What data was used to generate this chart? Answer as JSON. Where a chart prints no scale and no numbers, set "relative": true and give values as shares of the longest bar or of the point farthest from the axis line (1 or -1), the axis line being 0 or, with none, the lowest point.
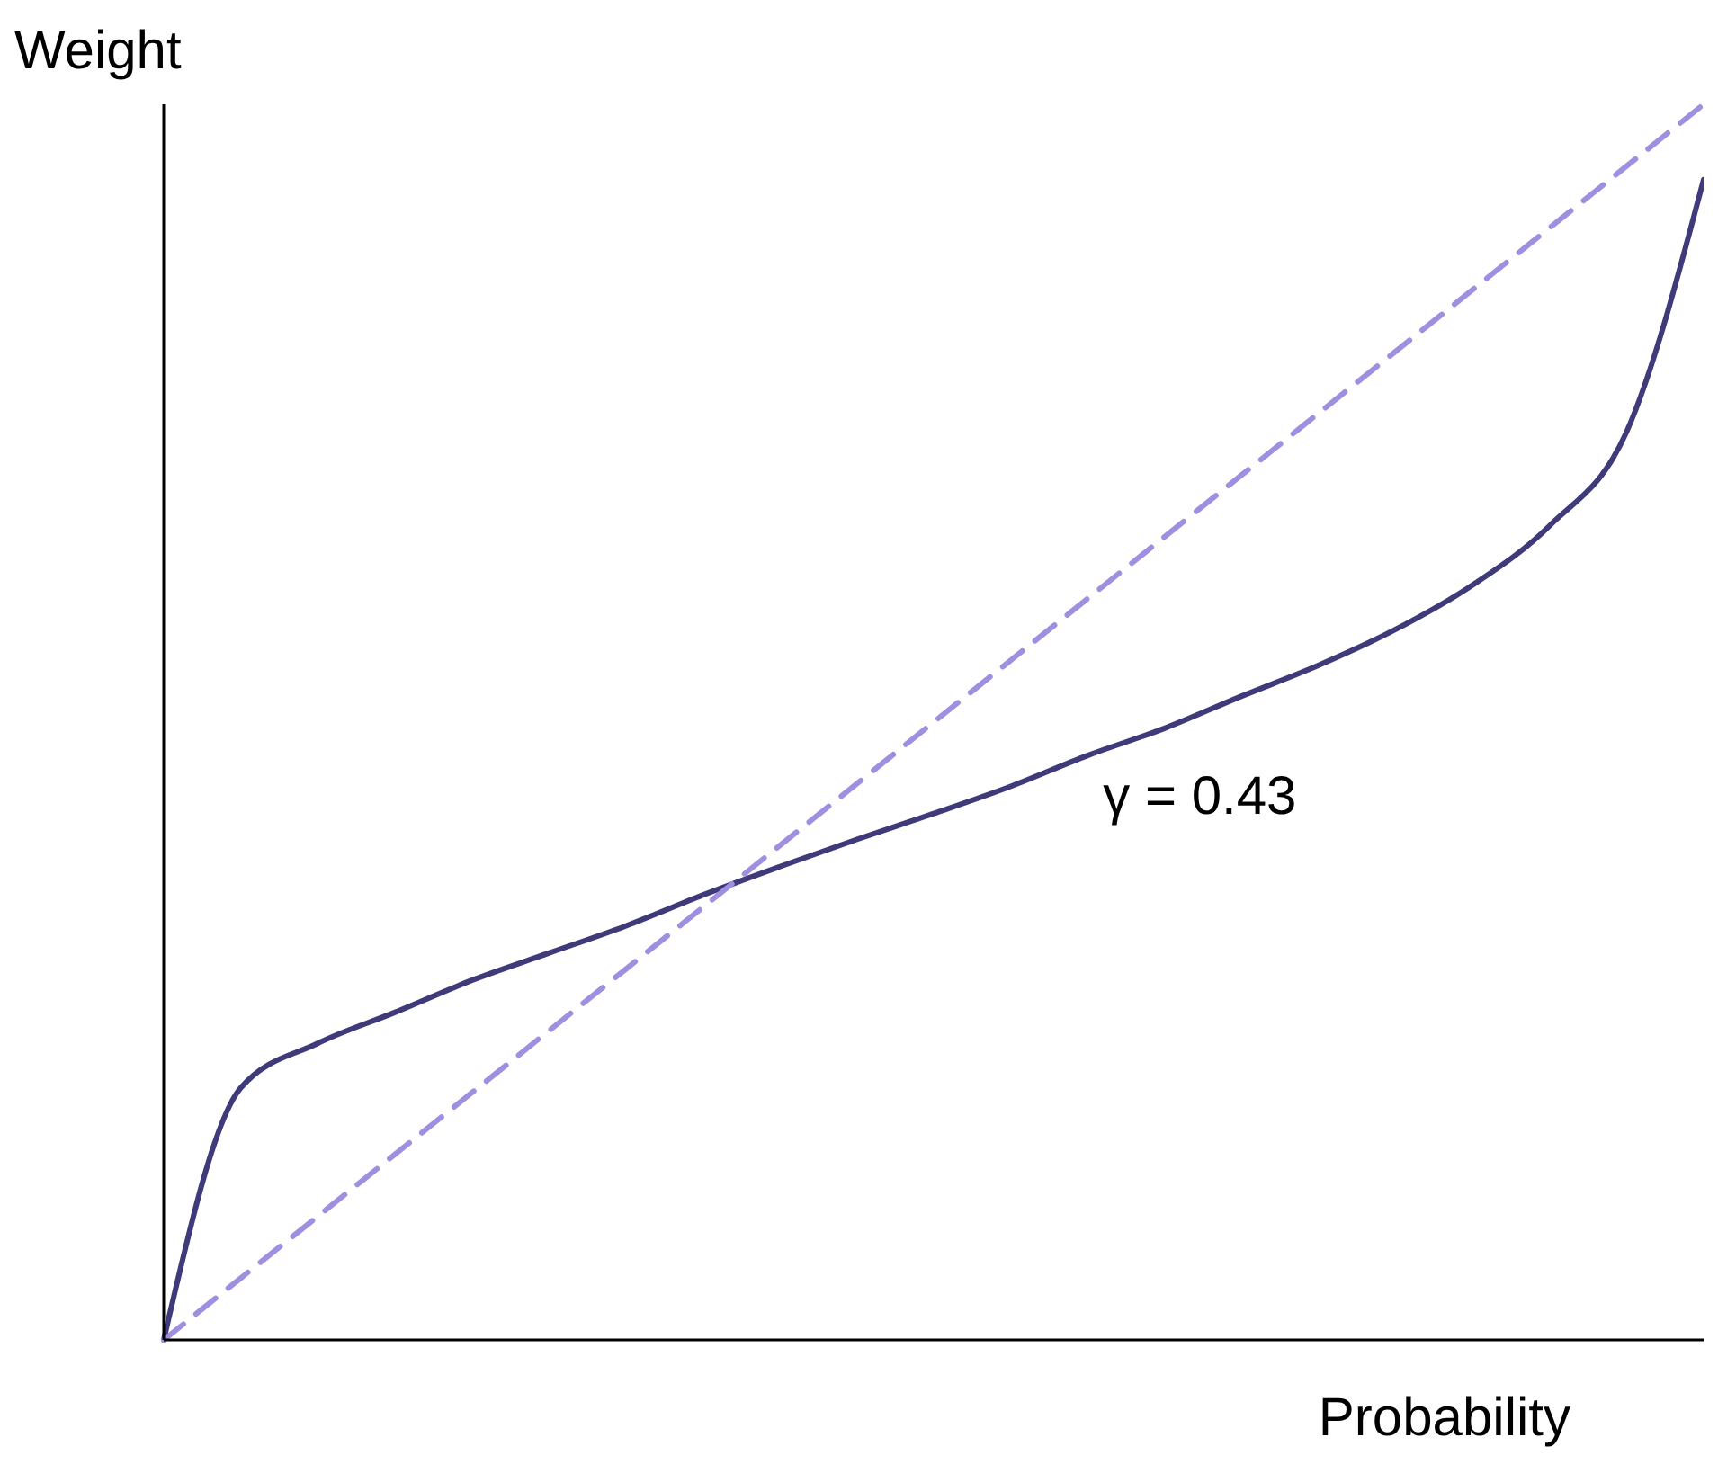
{
  "chart_data": {
    "type": "line",
    "relative": true,
    "xlabel": "Probability",
    "ylabel": "Weight",
    "annotations": [
      "γ = 0.43"
    ],
    "categories": [
      null,
      null,
      null,
      null,
      null,
      null,
      null,
      null,
      null,
      null,
      null,
      null,
      null,
      null,
      null,
      null,
      null,
      null,
      null,
      null,
      null
    ],
    "series": [
      {
        "color": "#3f3a7a",
        "line_style": "solid",
        "values": [
          0,
          0.204,
          0.24,
          0.265,
          0.291,
          0.313,
          0.335,
          0.36,
          0.383,
          0.405,
          0.426,
          0.448,
          0.473,
          0.495,
          0.521,
          0.546,
          0.575,
          0.611,
          0.659,
          0.735,
          0.939
        ]
      },
      {
        "color": "#a08ee0",
        "line_style": "dashed",
        "values": [
          0,
          0.05,
          0.1,
          0.15,
          0.2,
          0.25,
          0.3,
          0.35,
          0.4,
          0.45,
          0.5,
          0.55,
          0.6,
          0.65,
          0.7,
          0.75,
          0.8,
          0.85,
          0.9,
          0.95,
          1
        ]
      }
    ]
  }
}
